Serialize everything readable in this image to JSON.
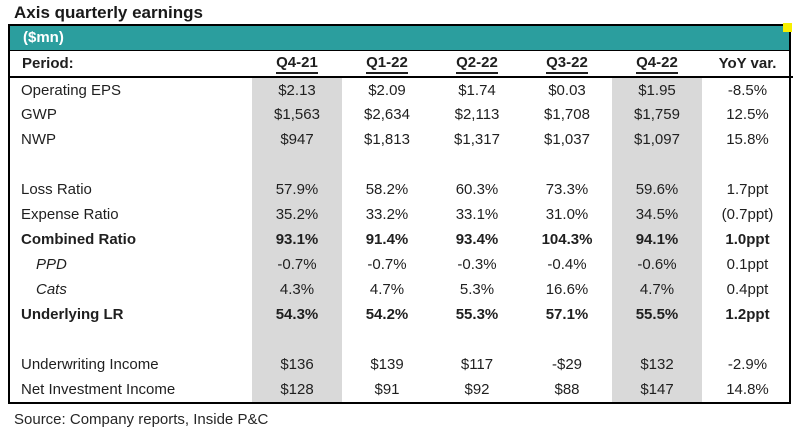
{
  "header": {
    "title": "Axis quarterly earnings",
    "unit_label": "($mn)"
  },
  "footer": {
    "source": "Source: Company reports, Inside P&C"
  },
  "colors": {
    "accent_teal": "#2B9E9E",
    "highlight_gray": "#D9D9D9",
    "marker_yellow": "#F8F000",
    "border_black": "#000000",
    "text_dark": "#1f1f1f"
  },
  "chart_data": {
    "type": "table",
    "title": "Axis quarterly earnings",
    "unit": "$mn",
    "columns": [
      "Period:",
      "Q4-21",
      "Q1-22",
      "Q2-22",
      "Q3-22",
      "Q4-22",
      "YoY var."
    ],
    "underlined_columns": [
      "Q4-21",
      "Q1-22",
      "Q2-22",
      "Q3-22",
      "Q4-22"
    ],
    "highlighted_columns": [
      "Q4-21",
      "Q4-22"
    ],
    "highlight_cell_indexes": [
      0,
      4
    ],
    "rows": [
      {
        "label": "Operating EPS",
        "style": "normal",
        "cells": [
          "$2.13",
          "$2.09",
          "$1.74",
          "$0.03",
          "$1.95",
          "-8.5%"
        ]
      },
      {
        "label": "GWP",
        "style": "normal",
        "cells": [
          "$1,563",
          "$2,634",
          "$2,113",
          "$1,708",
          "$1,759",
          "12.5%"
        ]
      },
      {
        "label": "NWP",
        "style": "normal",
        "cells": [
          "$947",
          "$1,813",
          "$1,317",
          "$1,037",
          "$1,097",
          "15.8%"
        ]
      },
      {
        "label": "",
        "style": "blank",
        "cells": [
          "",
          "",
          "",
          "",
          "",
          ""
        ]
      },
      {
        "label": "Loss Ratio",
        "style": "normal",
        "cells": [
          "57.9%",
          "58.2%",
          "60.3%",
          "73.3%",
          "59.6%",
          "1.7ppt"
        ]
      },
      {
        "label": "Expense Ratio",
        "style": "normal",
        "cells": [
          "35.2%",
          "33.2%",
          "33.1%",
          "31.0%",
          "34.5%",
          "(0.7ppt)"
        ]
      },
      {
        "label": "Combined Ratio",
        "style": "bold",
        "cells": [
          "93.1%",
          "91.4%",
          "93.4%",
          "104.3%",
          "94.1%",
          "1.0ppt"
        ]
      },
      {
        "label": "PPD",
        "style": "italic-indent",
        "cells": [
          "-0.7%",
          "-0.7%",
          "-0.3%",
          "-0.4%",
          "-0.6%",
          "0.1ppt"
        ]
      },
      {
        "label": "Cats",
        "style": "italic-indent",
        "cells": [
          "4.3%",
          "4.7%",
          "5.3%",
          "16.6%",
          "4.7%",
          "0.4ppt"
        ]
      },
      {
        "label": "Underlying LR",
        "style": "bold",
        "cells": [
          "54.3%",
          "54.2%",
          "55.3%",
          "57.1%",
          "55.5%",
          "1.2ppt"
        ]
      },
      {
        "label": "",
        "style": "blank",
        "cells": [
          "",
          "",
          "",
          "",
          "",
          ""
        ]
      },
      {
        "label": "Underwriting Income",
        "style": "normal",
        "cells": [
          "$136",
          "$139",
          "$117",
          "-$29",
          "$132",
          "-2.9%"
        ]
      },
      {
        "label": "Net Investment Income",
        "style": "normal",
        "cells": [
          "$128",
          "$91",
          "$92",
          "$88",
          "$147",
          "14.8%"
        ]
      }
    ],
    "source": "Source: Company reports, Inside P&C"
  }
}
